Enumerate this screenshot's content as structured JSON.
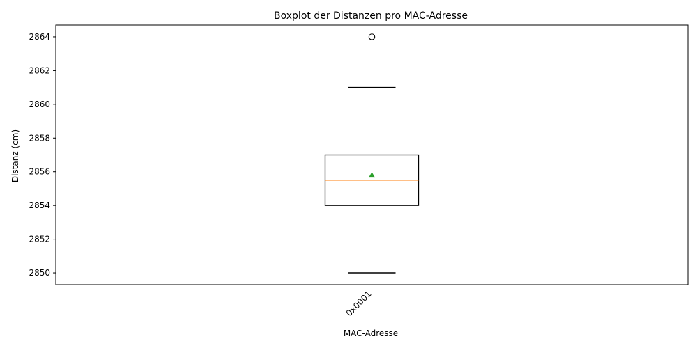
{
  "chart_data": {
    "type": "box",
    "title": "Boxplot der Distanzen pro MAC-Adresse",
    "xlabel": "MAC-Adresse",
    "ylabel": "Distanz (cm)",
    "ylim": [
      2849.3,
      2864.7
    ],
    "yticks": [
      2850,
      2852,
      2854,
      2856,
      2858,
      2860,
      2862,
      2864
    ],
    "categories": [
      "0x0001"
    ],
    "x_tick_rotation": 45,
    "grid": false,
    "boxes": [
      {
        "category": "0x0001",
        "whisker_low": 2850,
        "q1": 2854,
        "median": 2855.5,
        "q3": 2857,
        "whisker_high": 2861,
        "mean": 2855.8,
        "outliers": [
          2864
        ]
      }
    ],
    "colors": {
      "box": "#000000",
      "median": "#ff7f0e",
      "mean": "#2ca02c",
      "outlier": "#000000"
    }
  }
}
